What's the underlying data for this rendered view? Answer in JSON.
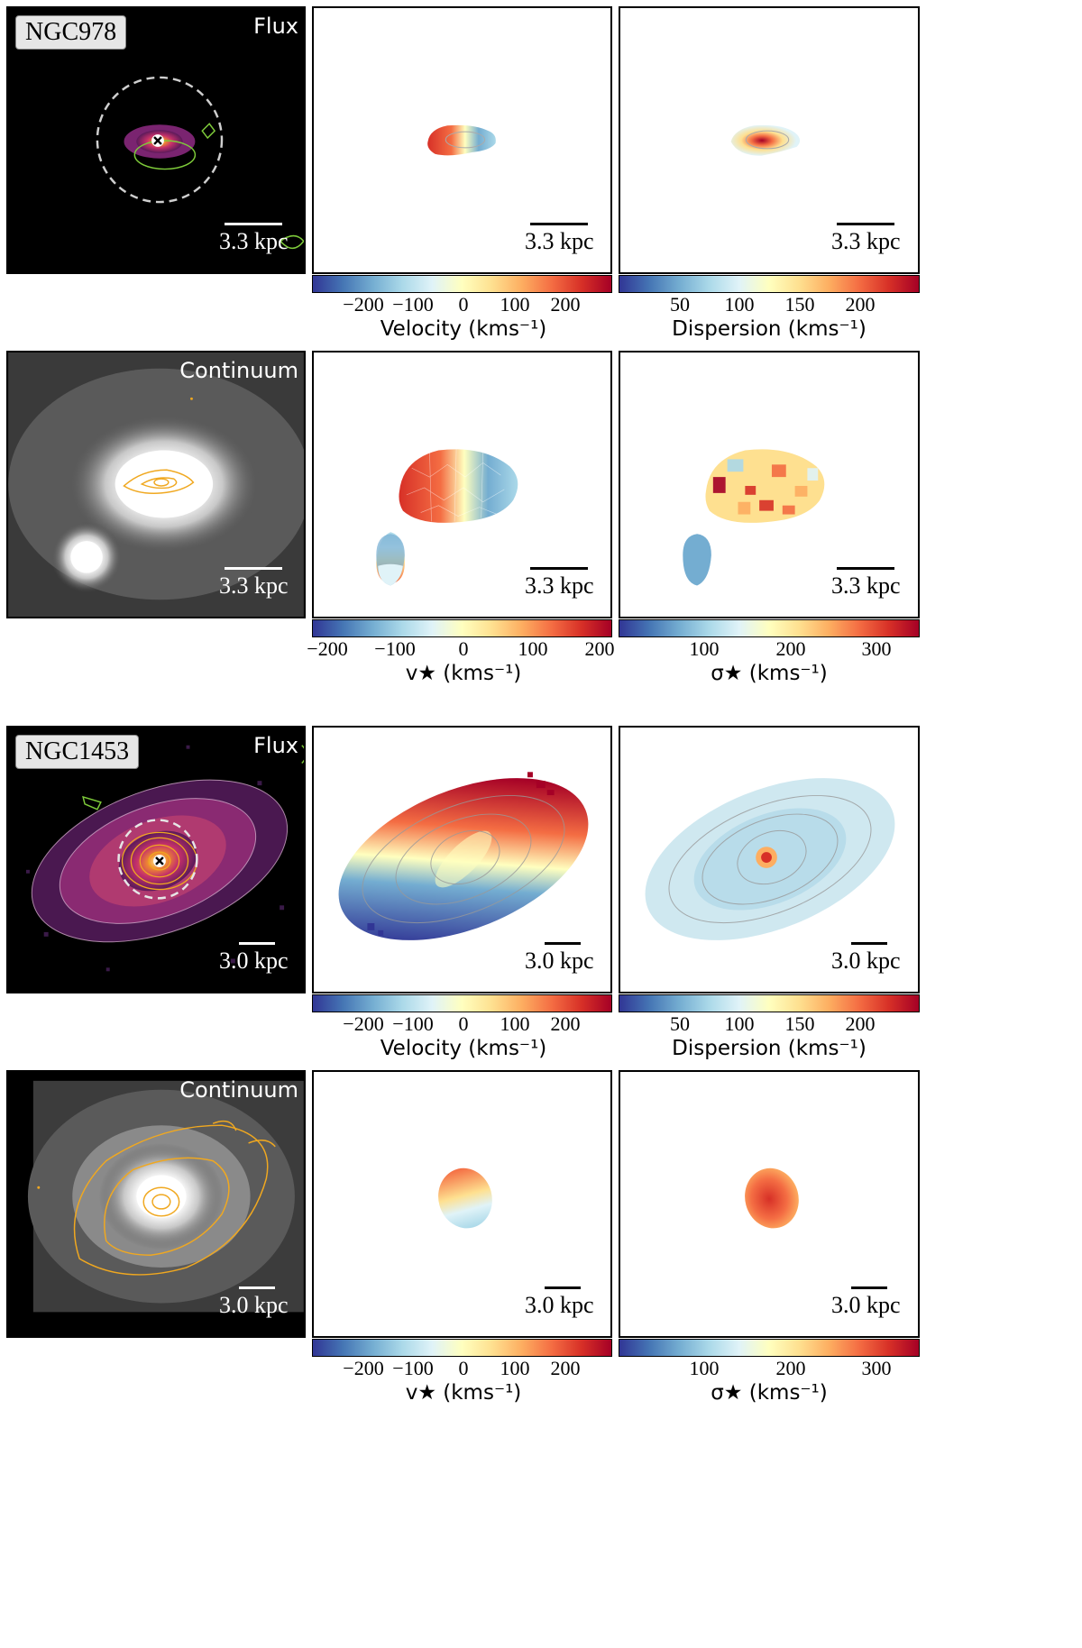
{
  "colors": {
    "rdylbu": [
      "#313695",
      "#4575b4",
      "#74add1",
      "#abd9e9",
      "#e0f3f8",
      "#ffffbf",
      "#fee090",
      "#fdae61",
      "#f46d43",
      "#d73027",
      "#a50026"
    ],
    "flux_bg": "#000000",
    "contour_gold": "#f0a820",
    "contour_green": "#7ecb3a"
  },
  "galaxies": [
    {
      "name": "NGC978",
      "flux_label": "Flux",
      "continuum_label": "Continuum",
      "scalebar": "3.3 kpc",
      "cb_velocity": {
        "title": "Velocity (kms⁻¹)",
        "ticks": [
          "−200",
          "−100",
          "0",
          "100",
          "200"
        ]
      },
      "cb_dispersion": {
        "title": "Dispersion (kms⁻¹)",
        "ticks": [
          "50",
          "100",
          "150",
          "200"
        ]
      },
      "cb_vstar": {
        "title": "v★ (kms⁻¹)",
        "ticks": [
          "−200",
          "−100",
          "0",
          "100",
          "200"
        ]
      },
      "cb_sigstar": {
        "title": "σ★ (kms⁻¹)",
        "ticks": [
          "100",
          "200",
          "300"
        ]
      }
    },
    {
      "name": "NGC1453",
      "flux_label": "Flux",
      "continuum_label": "Continuum",
      "scalebar": "3.0 kpc",
      "cb_velocity": {
        "title": "Velocity (kms⁻¹)",
        "ticks": [
          "−200",
          "−100",
          "0",
          "100",
          "200"
        ]
      },
      "cb_dispersion": {
        "title": "Dispersion (kms⁻¹)",
        "ticks": [
          "50",
          "100",
          "150",
          "200"
        ]
      },
      "cb_vstar": {
        "title": "v★ (kms⁻¹)",
        "ticks": [
          "−200",
          "−100",
          "0",
          "100",
          "200"
        ]
      },
      "cb_sigstar": {
        "title": "σ★ (kms⁻¹)",
        "ticks": [
          "100",
          "200",
          "300"
        ]
      }
    }
  ]
}
